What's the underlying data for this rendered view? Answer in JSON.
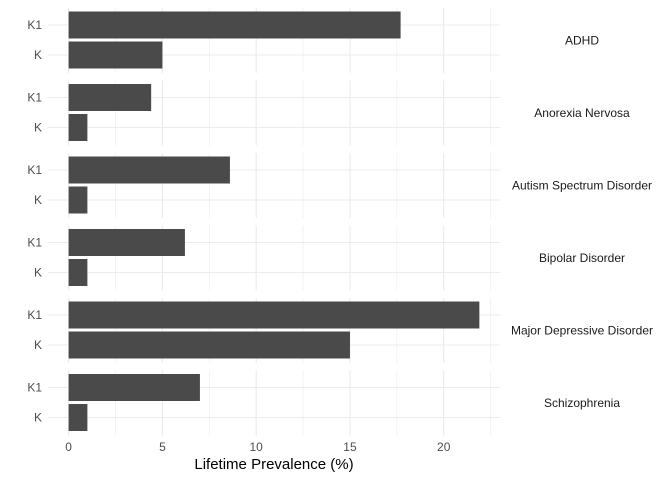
{
  "chart_data": {
    "type": "bar",
    "orientation": "horizontal",
    "facet_by": "disorder",
    "facets": [
      {
        "name": "ADHD",
        "categories": [
          "K1",
          "K"
        ],
        "values": [
          17.7,
          5.0
        ]
      },
      {
        "name": "Anorexia Nervosa",
        "categories": [
          "K1",
          "K"
        ],
        "values": [
          4.4,
          1.0
        ]
      },
      {
        "name": "Autism Spectrum Disorder",
        "categories": [
          "K1",
          "K"
        ],
        "values": [
          8.6,
          1.0
        ]
      },
      {
        "name": "Bipolar Disorder",
        "categories": [
          "K1",
          "K"
        ],
        "values": [
          6.2,
          1.0
        ]
      },
      {
        "name": "Major Depressive Disorder",
        "categories": [
          "K1",
          "K"
        ],
        "values": [
          21.9,
          15.0
        ]
      },
      {
        "name": "Schizophrenia",
        "categories": [
          "K1",
          "K"
        ],
        "values": [
          7.0,
          1.0
        ]
      }
    ],
    "xlabel": "Lifetime Prevalence (%)",
    "ylabel": "",
    "xlim": [
      -1.1,
      23.0
    ],
    "xticks": [
      0,
      5,
      10,
      15,
      20
    ],
    "grid": true,
    "legend": "none",
    "colors": {
      "bar": "#4a4a4a",
      "grid": "#ebebeb",
      "background": "#ffffff"
    }
  }
}
